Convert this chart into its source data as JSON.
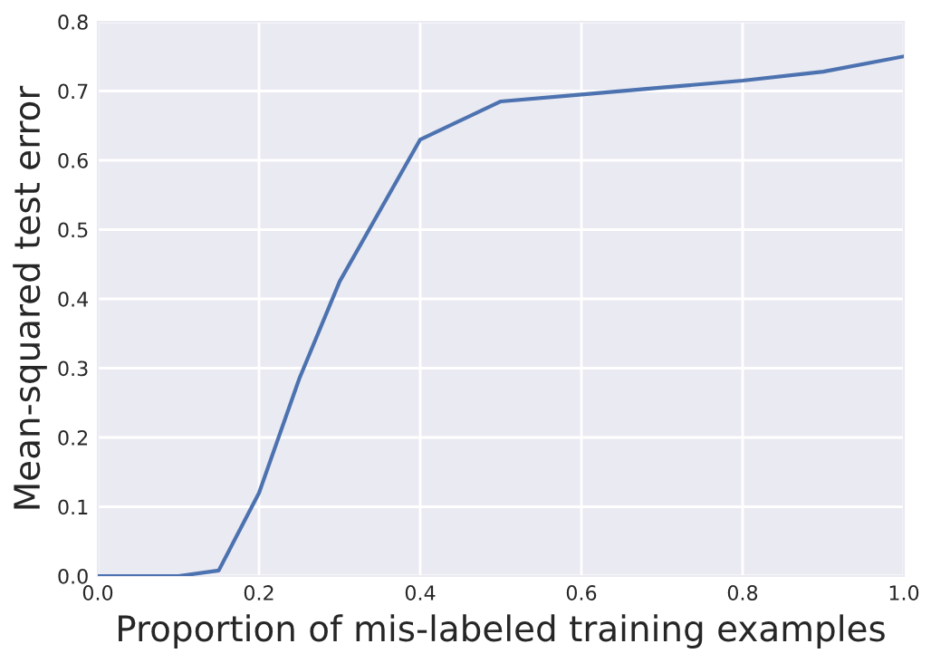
{
  "chart_data": {
    "type": "line",
    "xlabel": "Proportion of mis-labeled training examples",
    "ylabel": "Mean-squared test error",
    "x": [
      0,
      0.1,
      0.15,
      0.2,
      0.25,
      0.3,
      0.4,
      0.5,
      0.6,
      0.7,
      0.8,
      0.9,
      1.0
    ],
    "series": [
      {
        "color": "#4c72b0",
        "values": [
          0,
          0,
          0.008,
          0.12,
          0.285,
          0.425,
          0.63,
          0.685,
          0.695,
          0.705,
          0.715,
          0.728,
          0.75
        ]
      }
    ],
    "xlim": [
      0,
      1.0
    ],
    "xticks": [
      {
        "value": 0,
        "label": "0.0"
      },
      0.2,
      0.4,
      0.6,
      0.8,
      {
        "value": 1.0,
        "label": "1.0"
      }
    ],
    "ylim": [
      0,
      0.8
    ],
    "yticks": [
      {
        "value": 0,
        "label": "0.0"
      },
      0.1,
      0.2,
      0.3,
      0.4,
      0.5,
      0.6,
      0.7,
      0.8
    ],
    "grid": true,
    "marker": "none",
    "line_style": "solid"
  }
}
